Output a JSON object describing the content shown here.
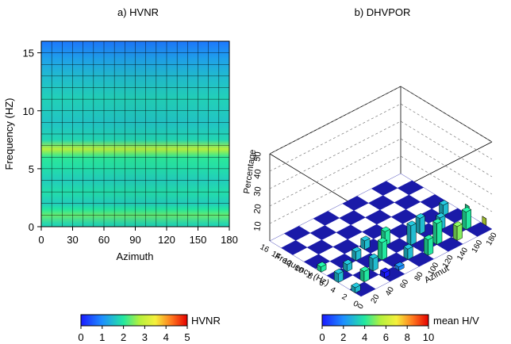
{
  "chart_data": [
    {
      "type": "heatmap",
      "title": "a) HVNR",
      "xlabel": "Azimuth",
      "ylabel": "Frequency (HZ)",
      "xlim": [
        0,
        180
      ],
      "ylim": [
        0,
        16
      ],
      "xticks": [
        0,
        30,
        60,
        90,
        120,
        150,
        180
      ],
      "yticks": [
        0,
        5,
        10,
        15
      ],
      "grid": true,
      "colorbar": {
        "label": "HVNR",
        "min": 0,
        "max": 5,
        "ticks": [
          0,
          1,
          2,
          3,
          4,
          5
        ]
      },
      "frequency_profile": [
        {
          "frequency": 0.2,
          "value": 1.8
        },
        {
          "frequency": 1.0,
          "value": 2.35
        },
        {
          "frequency": 1.5,
          "value": 2.0
        },
        {
          "frequency": 2.0,
          "value": 1.7
        },
        {
          "frequency": 3.0,
          "value": 1.9
        },
        {
          "frequency": 4.0,
          "value": 1.7
        },
        {
          "frequency": 5.0,
          "value": 1.9
        },
        {
          "frequency": 6.0,
          "value": 2.05
        },
        {
          "frequency": 6.7,
          "value": 2.8
        },
        {
          "frequency": 7.5,
          "value": 1.8
        },
        {
          "frequency": 9.0,
          "value": 1.6
        },
        {
          "frequency": 11.0,
          "value": 1.75
        },
        {
          "frequency": 13.0,
          "value": 1.5
        },
        {
          "frequency": 14.5,
          "value": 1.2
        },
        {
          "frequency": 16.0,
          "value": 0.8
        }
      ]
    },
    {
      "type": "bar3d",
      "title": "b) DHVPOR",
      "xlabel": "Azimut",
      "ylabel": "Frequency (Hz)",
      "zlabel": "Percentage",
      "xticks": [
        0,
        20,
        40,
        60,
        80,
        100,
        120,
        140,
        160,
        180
      ],
      "yticks": [
        0,
        2,
        4,
        6,
        8,
        10,
        12,
        14,
        16
      ],
      "zticks": [
        10,
        20,
        30,
        40,
        50
      ],
      "zlim": [
        0,
        50
      ],
      "colorbar": {
        "label": "mean H/V",
        "min": 0,
        "max": 10,
        "ticks": [
          0,
          2,
          4,
          6,
          8,
          10
        ]
      },
      "bars": [
        {
          "azimuth": 0,
          "frequency": 1,
          "percentage": 3,
          "mean_hv": 3
        },
        {
          "azimuth": 0,
          "frequency": 4,
          "percentage": 5,
          "mean_hv": 3
        },
        {
          "azimuth": 0,
          "frequency": 7,
          "percentage": 3,
          "mean_hv": 4
        },
        {
          "azimuth": 20,
          "frequency": 2,
          "percentage": 6,
          "mean_hv": 4
        },
        {
          "azimuth": 20,
          "frequency": 5,
          "percentage": 4,
          "mean_hv": 3
        },
        {
          "azimuth": 40,
          "frequency": 1,
          "percentage": 3,
          "mean_hv": 0
        },
        {
          "azimuth": 40,
          "frequency": 3,
          "percentage": 7,
          "mean_hv": 3
        },
        {
          "azimuth": 40,
          "frequency": 6,
          "percentage": 5,
          "mean_hv": 3
        },
        {
          "azimuth": 60,
          "frequency": 1,
          "percentage": 2,
          "mean_hv": 2
        },
        {
          "azimuth": 60,
          "frequency": 4,
          "percentage": 10,
          "mean_hv": 4
        },
        {
          "azimuth": 60,
          "frequency": 7,
          "percentage": 5,
          "mean_hv": 3
        },
        {
          "azimuth": 80,
          "frequency": 2,
          "percentage": 6,
          "mean_hv": 3
        },
        {
          "azimuth": 80,
          "frequency": 6,
          "percentage": 8,
          "mean_hv": 4
        },
        {
          "azimuth": 100,
          "frequency": 1,
          "percentage": 9,
          "mean_hv": 4
        },
        {
          "azimuth": 100,
          "frequency": 4,
          "percentage": 11,
          "mean_hv": 3
        },
        {
          "azimuth": 120,
          "frequency": 2,
          "percentage": 12,
          "mean_hv": 4
        },
        {
          "azimuth": 120,
          "frequency": 5,
          "percentage": 9,
          "mean_hv": 3
        },
        {
          "azimuth": 140,
          "frequency": 1,
          "percentage": 8,
          "mean_hv": 5
        },
        {
          "azimuth": 140,
          "frequency": 4,
          "percentage": 7,
          "mean_hv": 3
        },
        {
          "azimuth": 160,
          "frequency": 2,
          "percentage": 10,
          "mean_hv": 4
        },
        {
          "azimuth": 160,
          "frequency": 6,
          "percentage": 6,
          "mean_hv": 3
        },
        {
          "azimuth": 180,
          "frequency": 1,
          "percentage": 4,
          "mean_hv": 6
        },
        {
          "azimuth": 180,
          "frequency": 4,
          "percentage": 5,
          "mean_hv": 4
        }
      ]
    }
  ]
}
